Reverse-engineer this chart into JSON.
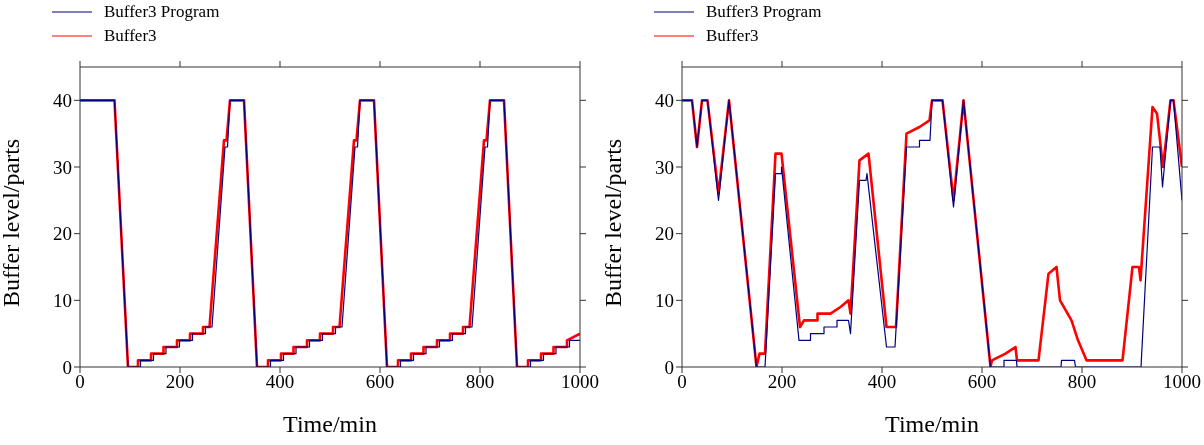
{
  "chart_data": [
    {
      "type": "line",
      "xlabel": "Time/min",
      "ylabel": "Buffer level/parts",
      "xlim": [
        0,
        1000
      ],
      "xticks": [
        0,
        200,
        400,
        600,
        800,
        1000
      ],
      "ylim": [
        0,
        45
      ],
      "yticks": [
        0,
        10,
        20,
        30,
        40
      ],
      "legend": "top left",
      "marker": "none",
      "line_style": "solid",
      "grid": false,
      "series": [
        {
          "name": "Buffer3 Program",
          "color": "#000080",
          "x": [
            0,
            69,
            96,
            121,
            121,
            147,
            147,
            172,
            172,
            199,
            199,
            225,
            225,
            251,
            251,
            264,
            290,
            295,
            300,
            328,
            354,
            381,
            381,
            407,
            407,
            432,
            432,
            459,
            459,
            485,
            485,
            511,
            511,
            524,
            550,
            555,
            560,
            588,
            614,
            641,
            641,
            667,
            667,
            692,
            692,
            719,
            719,
            745,
            745,
            771,
            771,
            784,
            810,
            815,
            820,
            848,
            874,
            901,
            901,
            927,
            927,
            952,
            952,
            979,
            979,
            1000
          ],
          "values": [
            40,
            40,
            0,
            0,
            1,
            1,
            2,
            2,
            3,
            3,
            4,
            4,
            5,
            5,
            6,
            6,
            33,
            33,
            40,
            40,
            0,
            0,
            1,
            1,
            2,
            2,
            3,
            3,
            4,
            4,
            5,
            5,
            6,
            6,
            33,
            33,
            40,
            40,
            0,
            0,
            1,
            1,
            2,
            2,
            3,
            3,
            4,
            4,
            5,
            5,
            6,
            6,
            33,
            33,
            40,
            40,
            0,
            0,
            1,
            1,
            2,
            2,
            3,
            3,
            4,
            4
          ]
        },
        {
          "name": "Buffer3",
          "color": "#ff0000",
          "x": [
            0,
            69,
            96,
            116,
            116,
            142,
            142,
            167,
            167,
            194,
            194,
            220,
            220,
            246,
            246,
            259,
            288,
            293,
            300,
            328,
            354,
            376,
            376,
            402,
            402,
            427,
            427,
            454,
            454,
            480,
            480,
            506,
            506,
            519,
            548,
            553,
            560,
            588,
            614,
            636,
            636,
            662,
            662,
            687,
            687,
            714,
            714,
            740,
            740,
            766,
            766,
            779,
            808,
            813,
            820,
            848,
            874,
            896,
            896,
            922,
            922,
            947,
            947,
            974,
            974,
            1000
          ],
          "values": [
            40,
            40,
            0,
            0,
            1,
            1,
            2,
            2,
            3,
            3,
            4,
            4,
            5,
            5,
            6,
            6,
            34,
            34,
            40,
            40,
            0,
            0,
            1,
            1,
            2,
            2,
            3,
            3,
            4,
            4,
            5,
            5,
            6,
            6,
            34,
            34,
            40,
            40,
            0,
            0,
            1,
            1,
            2,
            2,
            3,
            3,
            4,
            4,
            5,
            5,
            6,
            6,
            34,
            34,
            40,
            40,
            0,
            0,
            1,
            1,
            2,
            2,
            3,
            3,
            4,
            5
          ]
        }
      ]
    },
    {
      "type": "line",
      "xlabel": "Time/min",
      "ylabel": "Buffer level/parts",
      "xlim": [
        0,
        1000
      ],
      "xticks": [
        0,
        200,
        400,
        600,
        800,
        1000
      ],
      "ylim": [
        0,
        45
      ],
      "yticks": [
        0,
        10,
        20,
        30,
        40
      ],
      "legend": "top left",
      "marker": "none",
      "line_style": "solid",
      "grid": false,
      "series": [
        {
          "name": "Buffer3 Program",
          "color": "#000080",
          "x": [
            0,
            20,
            30,
            40,
            51,
            73,
            94,
            149,
            166,
            187,
            199,
            199,
            234,
            257,
            257,
            284,
            284,
            310,
            310,
            333,
            337,
            355,
            368,
            370,
            409,
            426,
            449,
            475,
            475,
            496,
            500,
            521,
            543,
            563,
            617,
            644,
            644,
            669,
            670,
            758,
            759,
            785,
            787,
            918,
            941,
            956,
            961,
            977,
            983,
            1000
          ],
          "values": [
            40,
            40,
            33,
            40,
            40,
            25,
            40,
            0,
            0,
            29,
            29,
            30,
            4,
            4,
            5,
            5,
            6,
            6,
            7,
            7,
            5,
            28,
            28,
            29,
            3,
            3,
            33,
            33,
            34,
            34,
            40,
            40,
            24,
            40,
            0,
            0,
            1,
            1,
            0,
            0,
            1,
            1,
            0,
            0,
            33,
            33,
            27,
            40,
            40,
            25
          ]
        },
        {
          "name": "Buffer3",
          "color": "#ff0000",
          "x": [
            0,
            20,
            30,
            40,
            51,
            73,
            94,
            149,
            155,
            166,
            187,
            199,
            236,
            244,
            271,
            271,
            297,
            317,
            333,
            337,
            355,
            373,
            409,
            428,
            449,
            475,
            495,
            500,
            521,
            543,
            563,
            617,
            620,
            647,
            667,
            670,
            713,
            733,
            749,
            756,
            779,
            792,
            809,
            881,
            901,
            914,
            917,
            941,
            950,
            962,
            977,
            983,
            1000
          ],
          "values": [
            40,
            40,
            33,
            40,
            40,
            26,
            40,
            0,
            2,
            2,
            32,
            32,
            6,
            7,
            7,
            8,
            8,
            9,
            10,
            8,
            31,
            32,
            6,
            6,
            35,
            36,
            37,
            40,
            40,
            25,
            40,
            0,
            1,
            2,
            3,
            1,
            1,
            14,
            15,
            10,
            7,
            4,
            1,
            1,
            15,
            15,
            13,
            39,
            38,
            30,
            40,
            40,
            30
          ]
        }
      ]
    }
  ]
}
